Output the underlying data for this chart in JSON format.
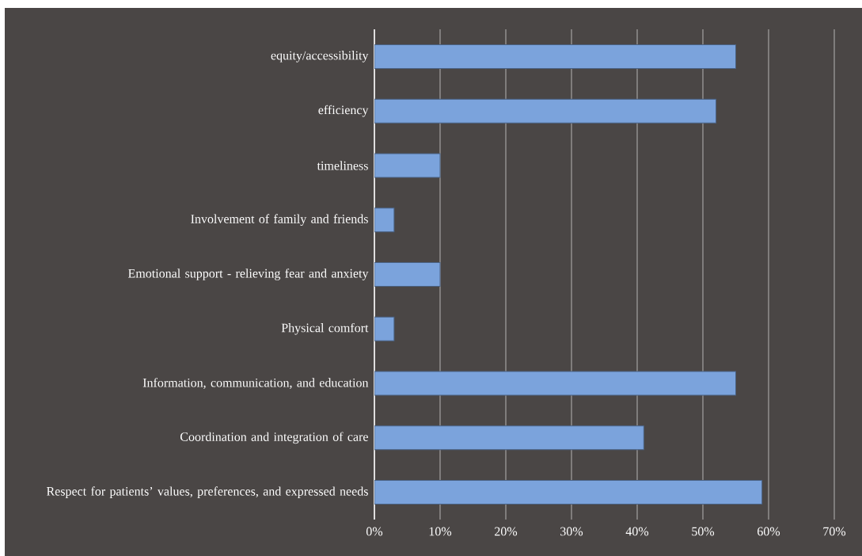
{
  "chart_data": {
    "type": "bar",
    "orientation": "horizontal",
    "categories": [
      "equity/accessibility",
      "efficiency",
      "timeliness",
      "Involvement of family and friends",
      "Emotional support - relieving fear and anxiety",
      "Physical comfort",
      "Information, communication, and education",
      "Coordination and integration of care",
      "Respect for patients’ values, preferences, and expressed needs"
    ],
    "values": [
      55,
      52,
      10,
      3,
      10,
      3,
      55,
      41,
      59
    ],
    "color": "#7ba3dc",
    "xlim": [
      0,
      70
    ],
    "xticks": [
      {
        "value": 0,
        "label": "0%"
      },
      {
        "value": 10,
        "label": "10%"
      },
      {
        "value": 20,
        "label": "20%"
      },
      {
        "value": 30,
        "label": "30%"
      },
      {
        "value": 40,
        "label": "40%"
      },
      {
        "value": 50,
        "label": "50%"
      },
      {
        "value": 60,
        "label": "60%"
      },
      {
        "value": 70,
        "label": "70%"
      }
    ],
    "grid": "x"
  }
}
